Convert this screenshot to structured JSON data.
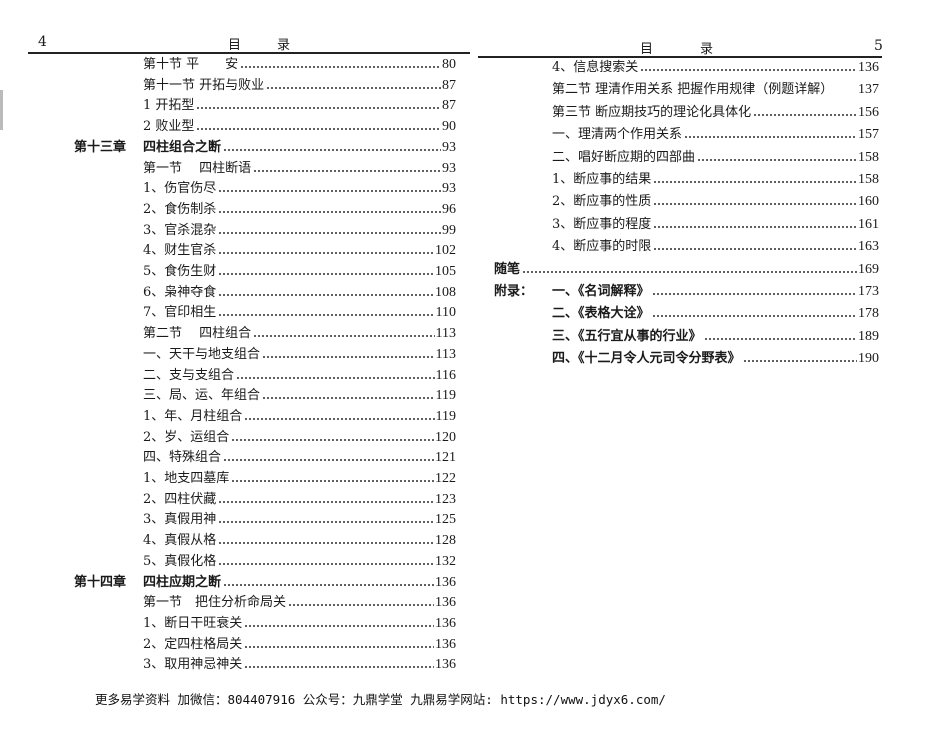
{
  "left_page": {
    "page_number": "4",
    "header": [
      "目",
      "录"
    ],
    "rows": [
      {
        "chapter": "",
        "label": "第十节 平　　安",
        "page": "80"
      },
      {
        "chapter": "",
        "label": "第十一节 开拓与败业",
        "page": "87"
      },
      {
        "chapter": "",
        "label": "1 开拓型 ",
        "page": "87"
      },
      {
        "chapter": "",
        "label": "2 败业型 ",
        "page": "90"
      },
      {
        "chapter": "第十三章",
        "label": "四柱组合之断 ",
        "page": "93",
        "bold": true
      },
      {
        "chapter": "",
        "label": "第一节　 四柱断语",
        "page": "93"
      },
      {
        "chapter": "",
        "label": "1、伤官伤尽",
        "page": "93"
      },
      {
        "chapter": "",
        "label": "2、食伤制杀",
        "page": "96"
      },
      {
        "chapter": "",
        "label": "3、官杀混杂",
        "page": "99"
      },
      {
        "chapter": "",
        "label": "4、财生官杀 ",
        "page": "102"
      },
      {
        "chapter": "",
        "label": "5、食伤生财 ",
        "page": "105"
      },
      {
        "chapter": "",
        "label": "6、枭神夺食 ",
        "page": "108"
      },
      {
        "chapter": "",
        "label": "7、官印相生 ",
        "page": "110"
      },
      {
        "chapter": "",
        "label": "第二节　 四柱组合 ",
        "page": "113"
      },
      {
        "chapter": "",
        "label": "一、天干与地支组合",
        "page": "113"
      },
      {
        "chapter": "",
        "label": "二、支与支组合",
        "page": "116"
      },
      {
        "chapter": "",
        "label": "三、局、运、年组合",
        "page": "119"
      },
      {
        "chapter": "",
        "label": "1、年、月柱组合 ",
        "page": "119"
      },
      {
        "chapter": "",
        "label": "2、岁、运组合 ",
        "page": "120"
      },
      {
        "chapter": "",
        "label": "四、特殊组合",
        "page": "121"
      },
      {
        "chapter": "",
        "label": "1、地支四墓库 ",
        "page": "122"
      },
      {
        "chapter": "",
        "label": "2、四柱伏藏 ",
        "page": "123"
      },
      {
        "chapter": "",
        "label": "3、真假用神 ",
        "page": "125"
      },
      {
        "chapter": "",
        "label": "4、真假从格 ",
        "page": "128"
      },
      {
        "chapter": "",
        "label": "5、真假化格 ",
        "page": "132"
      },
      {
        "chapter": "第十四章",
        "label": "四柱应期之断",
        "page": "136",
        "bold": true
      },
      {
        "chapter": "",
        "label": "第一节　把住分析命局关",
        "page": "136"
      },
      {
        "chapter": "",
        "label": "1、断日干旺衰关 ",
        "page": "136"
      },
      {
        "chapter": "",
        "label": "2、定四柱格局关 ",
        "page": "136"
      },
      {
        "chapter": "",
        "label": "3、取用神忌神关 ",
        "page": "136"
      }
    ]
  },
  "right_page": {
    "page_number": "5",
    "header": [
      "目",
      "录"
    ],
    "rows": [
      {
        "chapter": "",
        "label": "4、信息搜索关 ",
        "page": "136"
      },
      {
        "chapter": "",
        "label": "第二节 理清作用关系 把握作用规律（例题详解）",
        "page": "137",
        "noleader": true
      },
      {
        "chapter": "",
        "label": "第三节 断应期技巧的理论化具体化 ",
        "page": "156"
      },
      {
        "chapter": "",
        "label": "一、理清两个作用关系",
        "page": "157"
      },
      {
        "chapter": "",
        "label": "二、唱好断应期的四部曲",
        "page": "158"
      },
      {
        "chapter": "",
        "label": "1、断应事的结果 ",
        "page": "158"
      },
      {
        "chapter": "",
        "label": "2、断应事的性质 ",
        "page": "160"
      },
      {
        "chapter": "",
        "label": "3、断应事的程度 ",
        "page": "161"
      },
      {
        "chapter": "",
        "label": "4、断应事的时限 ",
        "page": "163"
      },
      {
        "chapter": "随笔",
        "label": "",
        "page": "169",
        "bold": true,
        "inline_chapter": true
      },
      {
        "chapter": "附录：",
        "label": "一、《名词解释》 ",
        "page": "173",
        "bold": true
      },
      {
        "chapter": "",
        "label": "二、《表格大诠》 ",
        "page": "178",
        "bold": true
      },
      {
        "chapter": "",
        "label": "三、《五行宜从事的行业》 ",
        "page": "189",
        "bold": true
      },
      {
        "chapter": "",
        "label": "四、《十二月令人元司令分野表》 ",
        "page": "190",
        "bold": true
      }
    ]
  },
  "footer": "更多易学资料 加微信：804407916 公众号：九鼎学堂 九鼎易学网站: https://www.jdyx6.com/"
}
